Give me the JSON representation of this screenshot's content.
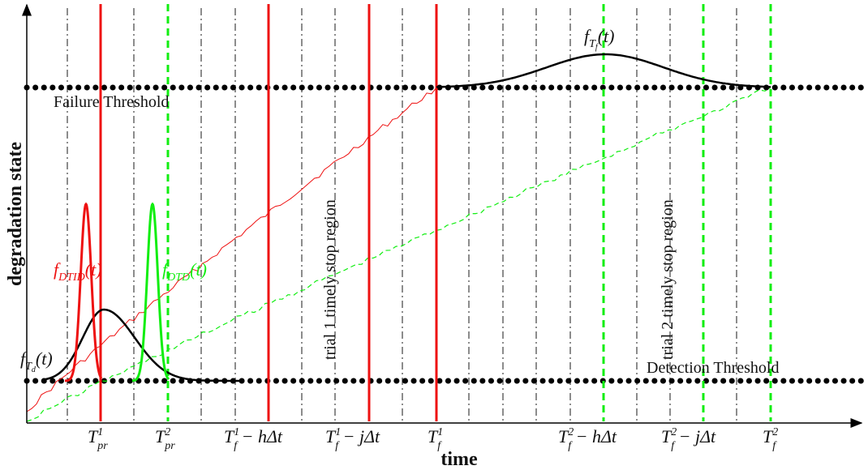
{
  "axes": {
    "x_title": "time",
    "y_title": "degradation state"
  },
  "thresholds": {
    "failure_label": "Failure Threshold",
    "detection_label": "Detection Threshold"
  },
  "regions": {
    "trial1": "trial 1 timely stop region",
    "trial2": "trial 2 timely stop region"
  },
  "densities": {
    "fTd": {
      "base": "f",
      "sub": "T",
      "subsub": "d",
      "arg": "(t)"
    },
    "fTf": {
      "base": "f",
      "sub": "T",
      "subsub": "f",
      "arg": "(t)"
    },
    "fDTID": {
      "base": "f",
      "sub": "DTID",
      "arg": "(t)"
    },
    "fDTD": {
      "base": "f",
      "sub": "DTD",
      "arg": "(t)"
    }
  },
  "ticks": [
    {
      "base": "T",
      "sup": "1",
      "sub": "pr",
      "tail": ""
    },
    {
      "base": "T",
      "sup": "2",
      "sub": "pr",
      "tail": ""
    },
    {
      "base": "T",
      "sup": "1",
      "sub": "f",
      "tail": " − hΔt"
    },
    {
      "base": "T",
      "sup": "1",
      "sub": "f",
      "tail": " − jΔt"
    },
    {
      "base": "T",
      "sup": "1",
      "sub": "f",
      "tail": ""
    },
    {
      "base": "T",
      "sup": "2",
      "sub": "f",
      "tail": " − hΔt"
    },
    {
      "base": "T",
      "sup": "2",
      "sub": "f",
      "tail": " − jΔt"
    },
    {
      "base": "T",
      "sup": "2",
      "sub": "f",
      "tail": ""
    }
  ],
  "colors": {
    "trial1": "#ee1111",
    "trial2": "#11ee11",
    "ink": "#000000"
  }
}
